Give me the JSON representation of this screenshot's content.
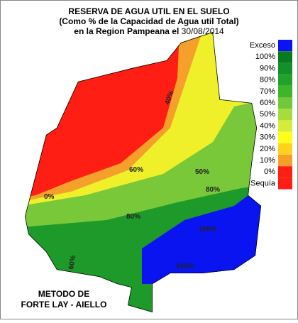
{
  "title": {
    "line1": "RESERVA DE AGUA UTIL EN EL SUELO",
    "line2": "(Como % de la Capacidad de  Agua util Total)",
    "line3": "en la Region Pampeana el",
    "date": "30/08/2014"
  },
  "legend": [
    {
      "label": "Exceso",
      "color": "#0a14f0"
    },
    {
      "label": "100%",
      "color": "#0a7a1e"
    },
    {
      "label": "90%",
      "color": "#14902a"
    },
    {
      "label": "80%",
      "color": "#22a22a"
    },
    {
      "label": "70%",
      "color": "#3fb52c"
    },
    {
      "label": "60%",
      "color": "#70c83a"
    },
    {
      "label": "50%",
      "color": "#a6dc3c"
    },
    {
      "label": "40%",
      "color": "#d6ec3c"
    },
    {
      "label": "30%",
      "color": "#ffff1e"
    },
    {
      "label": "20%",
      "color": "#ffd21e"
    },
    {
      "label": "10%",
      "color": "#f5a02a"
    },
    {
      "label": "0%",
      "color": "#ff1e14"
    },
    {
      "label": "Sequía",
      "color": "#ff1e14"
    }
  ],
  "method": [
    "METODO DE",
    "FORTE LAY - AIELLO"
  ],
  "contours": [
    "40%",
    "60%",
    "0%",
    "50%",
    "80%",
    "100%",
    "60%",
    "80%",
    "100%"
  ]
}
